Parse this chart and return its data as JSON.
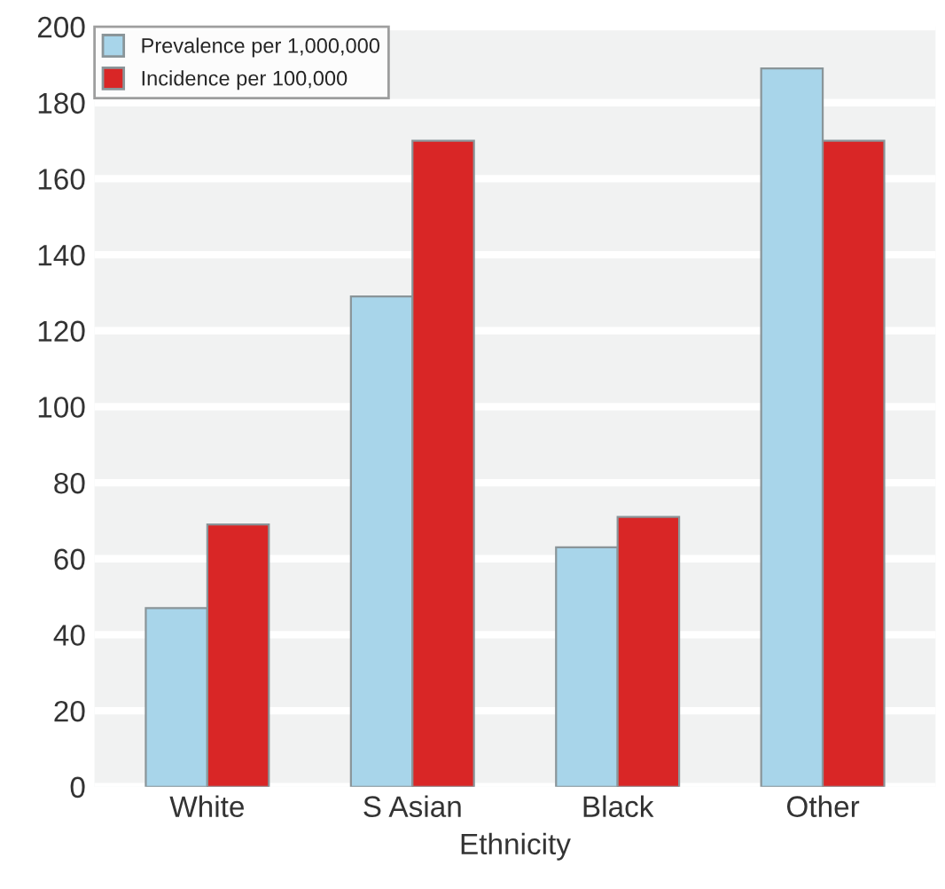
{
  "chart_data": {
    "type": "bar",
    "xlabel": "Ethnicity",
    "categories": [
      "White",
      "S Asian",
      "Black",
      "Other"
    ],
    "series": [
      {
        "name": "Prevalence per 1,000,000",
        "color": "#a8d5ea",
        "values": [
          47,
          129,
          63,
          189
        ]
      },
      {
        "name": "Incidence per 100,000",
        "color": "#d92626",
        "values": [
          69,
          170,
          71,
          170
        ]
      }
    ],
    "ylim": [
      0,
      200
    ],
    "yticks": [
      0,
      20,
      40,
      60,
      80,
      100,
      120,
      140,
      160,
      180,
      200
    ],
    "grid": "y",
    "legend": "top left"
  }
}
